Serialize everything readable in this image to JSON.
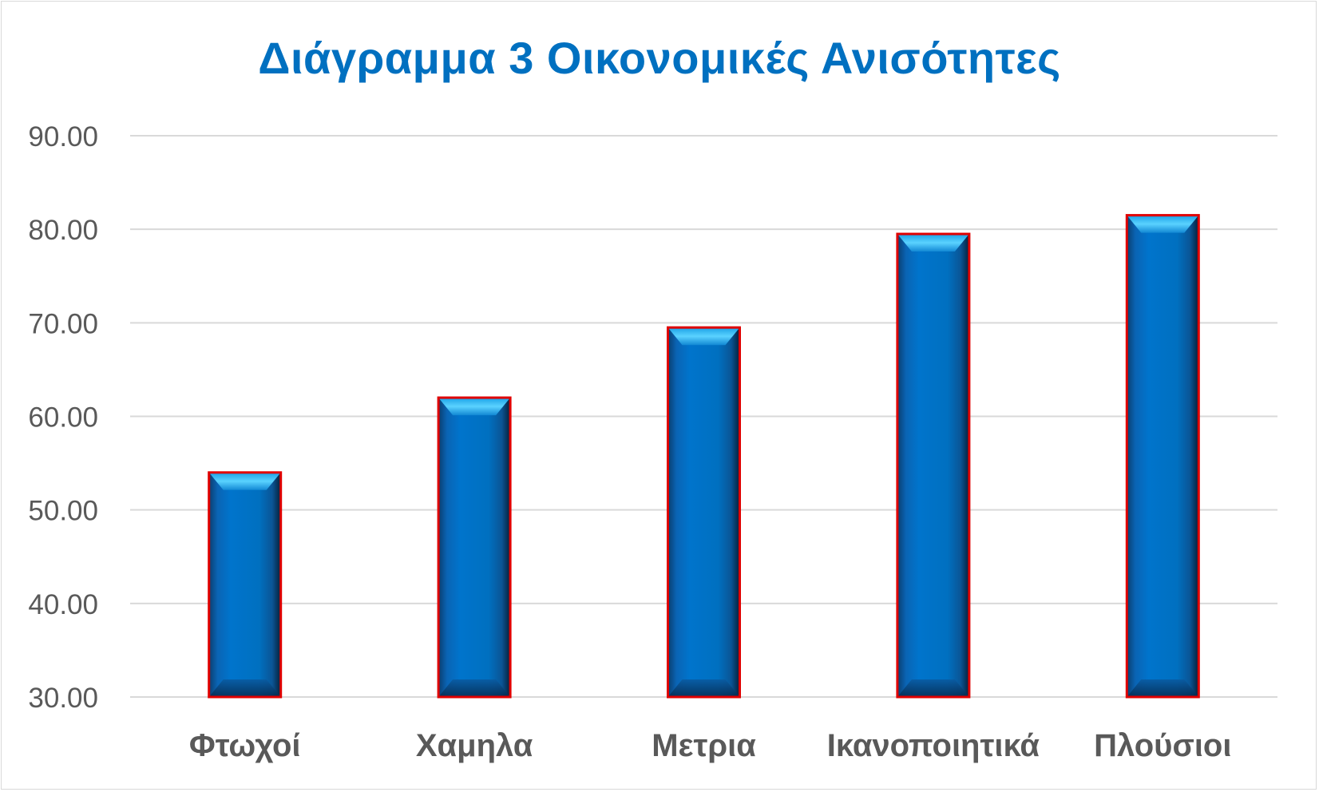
{
  "chart_data": {
    "type": "bar",
    "title": "Διάγραμμα 3 Οικονομικές Ανισότητες",
    "xlabel": "",
    "ylabel": "",
    "categories": [
      "Φτωχοί",
      "Χαμηλα",
      "Μετρια",
      "Ικανοποιητικά",
      "Πλούσιοι"
    ],
    "values": [
      54.0,
      62.0,
      69.5,
      79.5,
      81.5
    ],
    "ylim": [
      30,
      90
    ],
    "yticks": [
      30,
      40,
      50,
      60,
      70,
      80,
      90
    ],
    "ytick_labels": [
      "30.00",
      "40.00",
      "50.00",
      "60.00",
      "70.00",
      "80.00",
      "90.00"
    ],
    "grid": true,
    "legend": "none",
    "colors": {
      "title": "#0070c0",
      "bar_fill": "#0070c0",
      "bar_highlight": "#35c0f5",
      "bar_outline": "#e00000",
      "gridline": "#d9d9d9",
      "tick_text": "#595959"
    }
  }
}
